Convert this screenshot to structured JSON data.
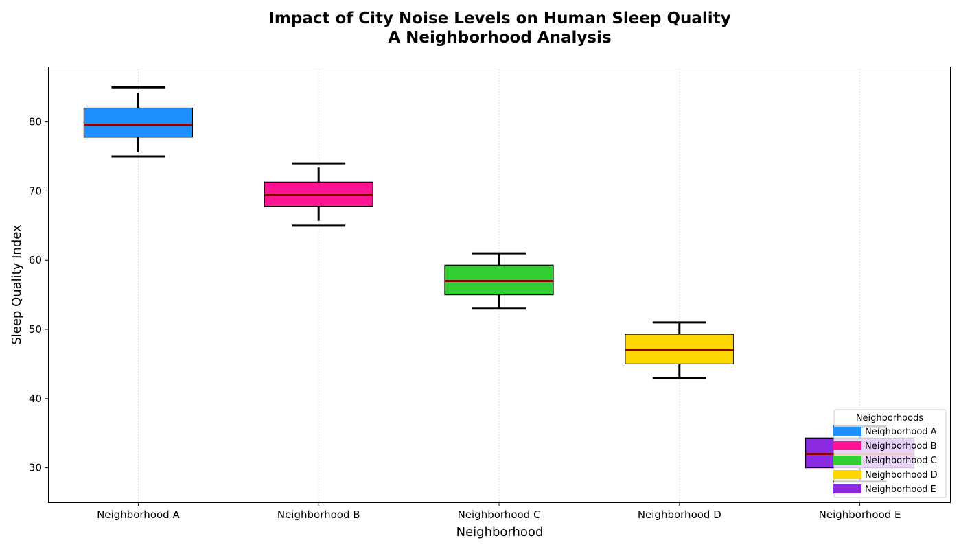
{
  "chart_data": {
    "type": "box",
    "title_lines": [
      "Impact of City Noise Levels on Human Sleep Quality",
      "A Neighborhood Analysis"
    ],
    "xlabel": "Neighborhood",
    "ylabel": "Sleep Quality Index",
    "ylim": [
      25,
      88
    ],
    "yticks": [
      30,
      40,
      50,
      60,
      70,
      80
    ],
    "grid": "vertical dotted",
    "categories": [
      "Neighborhood A",
      "Neighborhood B",
      "Neighborhood C",
      "Neighborhood D",
      "Neighborhood E"
    ],
    "series": [
      {
        "name": "Neighborhood A",
        "color": "#1E90FF",
        "whisker_low": 75,
        "q1": 77.8,
        "median": 79.6,
        "q3": 82,
        "whisker_high": 85,
        "cap_low": 75,
        "cap_high": 85,
        "stem_low": 75.6,
        "stem_high": 84.2
      },
      {
        "name": "Neighborhood B",
        "color": "#FF1493",
        "whisker_low": 65,
        "q1": 67.8,
        "median": 69.5,
        "q3": 71.3,
        "whisker_high": 74,
        "cap_low": 65,
        "cap_high": 74,
        "stem_low": 65.7,
        "stem_high": 73.4
      },
      {
        "name": "Neighborhood C",
        "color": "#32CD32",
        "whisker_low": 53,
        "q1": 55,
        "median": 57,
        "q3": 59.3,
        "whisker_high": 61,
        "cap_low": 53,
        "cap_high": 61,
        "stem_low": 53,
        "stem_high": 61
      },
      {
        "name": "Neighborhood D",
        "color": "#FFD700",
        "whisker_low": 43,
        "q1": 45,
        "median": 47,
        "q3": 49.3,
        "whisker_high": 51,
        "cap_low": 43,
        "cap_high": 51,
        "stem_low": 43,
        "stem_high": 51
      },
      {
        "name": "Neighborhood E",
        "color": "#8A2BE2",
        "whisker_low": 28,
        "q1": 30,
        "median": 32,
        "q3": 34.3,
        "whisker_high": 36,
        "cap_low": 28,
        "cap_high": 36,
        "stem_low": 28,
        "stem_high": 36
      }
    ],
    "median_color": "#8B0000",
    "legend": {
      "title": "Neighborhoods",
      "placement": "lower-right",
      "entries": [
        "Neighborhood A",
        "Neighborhood B",
        "Neighborhood C",
        "Neighborhood D",
        "Neighborhood E"
      ]
    }
  }
}
